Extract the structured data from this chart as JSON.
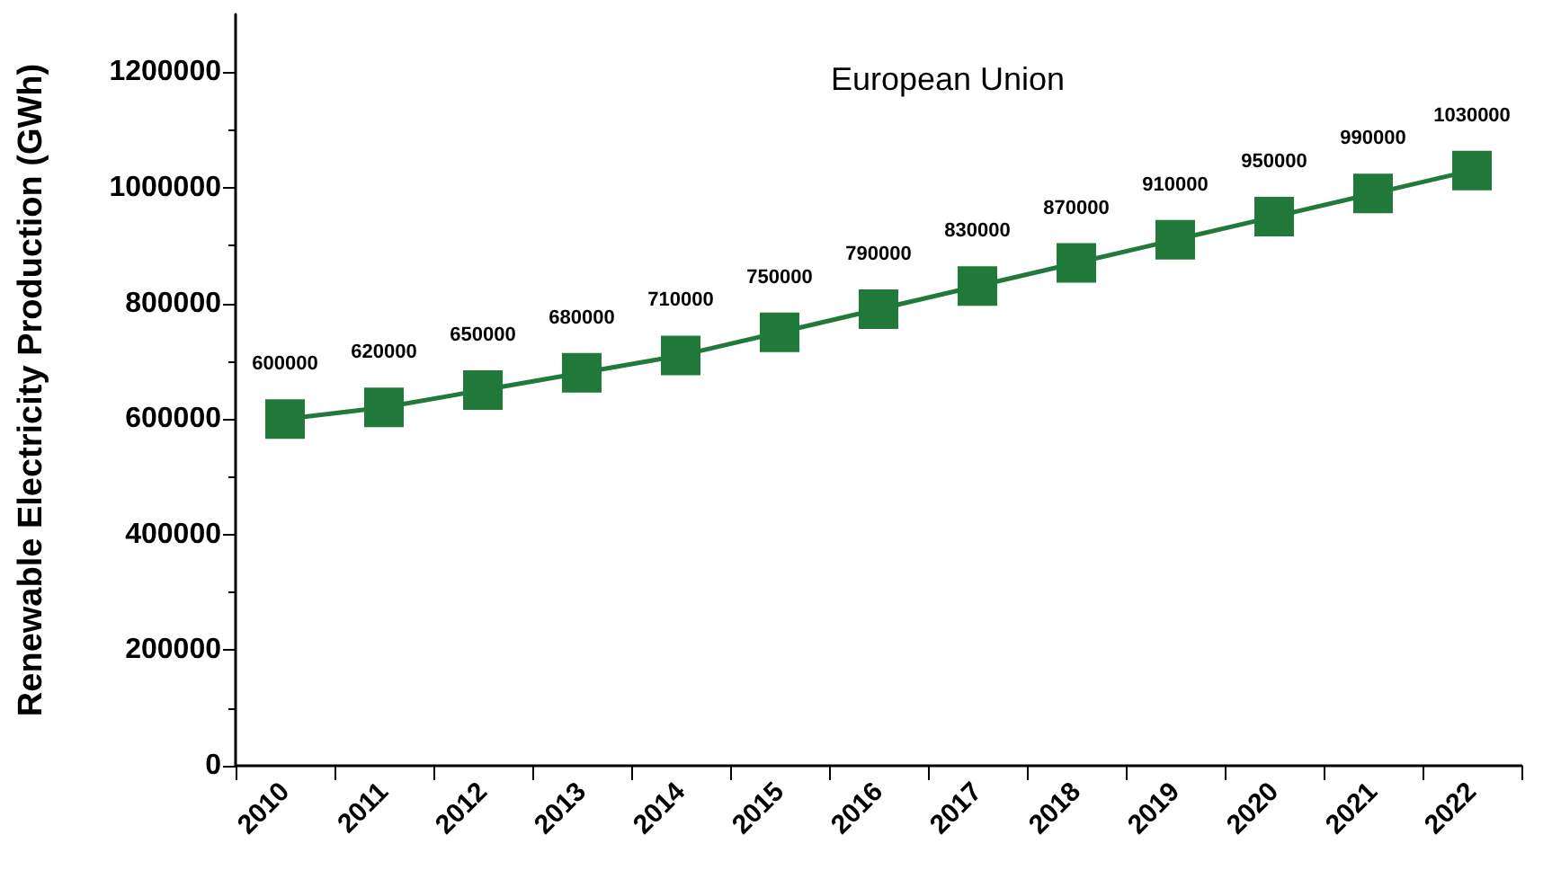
{
  "chart_data": {
    "type": "line",
    "title": "European Union",
    "ylabel": "Renewable Electricity Production (GWh)",
    "categories": [
      "2010",
      "2011",
      "2012",
      "2013",
      "2014",
      "2015",
      "2016",
      "2017",
      "2018",
      "2019",
      "2020",
      "2021",
      "2022"
    ],
    "series": [
      {
        "color": "#217a3a",
        "values": [
          600000,
          620000,
          650000,
          680000,
          710000,
          750000,
          790000,
          830000,
          870000,
          910000,
          950000,
          990000,
          1030000
        ]
      }
    ],
    "ylim": [
      0,
      1300000
    ],
    "yticks": [
      0,
      200000,
      400000,
      600000,
      800000,
      1000000,
      1200000
    ],
    "marker": "square",
    "line_style": "solid",
    "data_labels": true
  }
}
